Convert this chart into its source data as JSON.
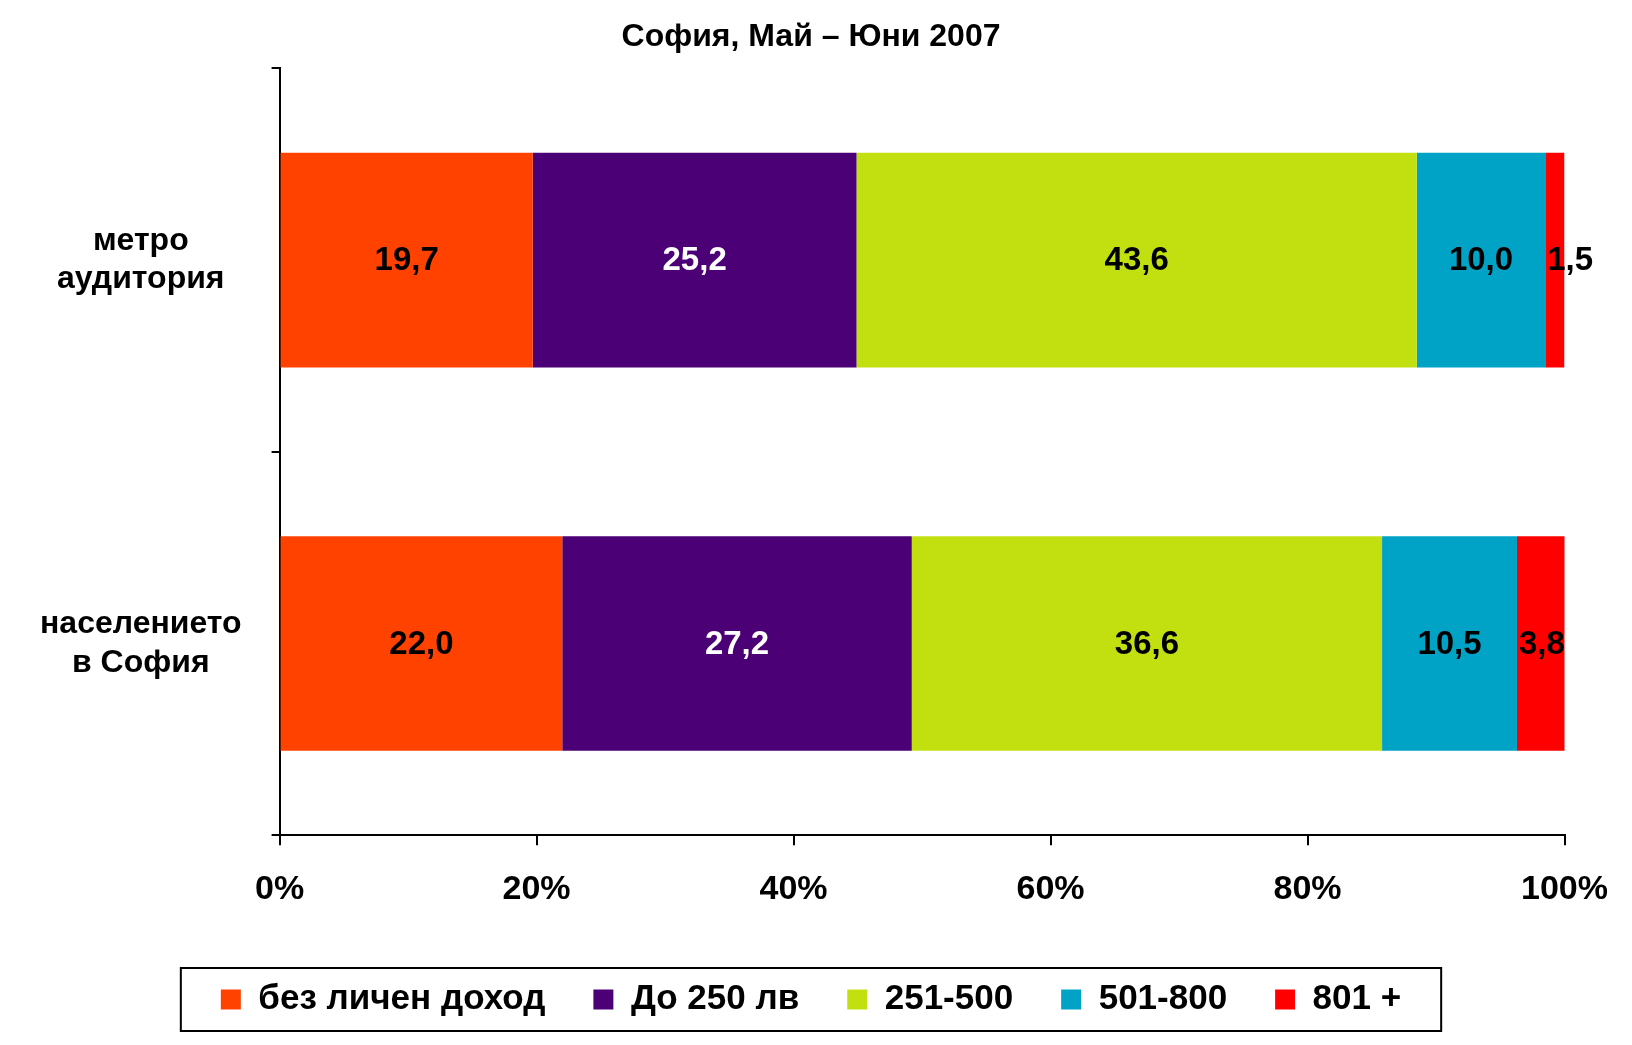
{
  "chart_data": {
    "type": "bar",
    "orientation": "horizontal",
    "stacked": true,
    "title": "София, Май – Юни 2007",
    "categories": [
      "метро аудитория",
      "населението в София"
    ],
    "series": [
      {
        "name": "без личен доход",
        "color": "#ff4200",
        "values": [
          19.7,
          22.0
        ],
        "value_labels": [
          "19,7",
          "22,0"
        ]
      },
      {
        "name": "До 250 лв",
        "color": "#4c0076",
        "values": [
          25.2,
          27.2
        ],
        "value_labels": [
          "25,2",
          "27,2"
        ]
      },
      {
        "name": "251-500",
        "color": "#c2e010",
        "values": [
          43.6,
          36.6
        ],
        "value_labels": [
          "43,6",
          "36,6"
        ]
      },
      {
        "name": "501-800",
        "color": "#00a2c6",
        "values": [
          10.0,
          10.5
        ],
        "value_labels": [
          "10,0",
          "10,5"
        ]
      },
      {
        "name": "801 +",
        "color": "#ff0000",
        "values": [
          1.5,
          3.8
        ],
        "value_labels": [
          "1,5",
          "3,8"
        ]
      }
    ],
    "xlim": [
      0,
      100
    ],
    "xticks": [
      {
        "value": 0,
        "label": "0%"
      },
      {
        "value": 20,
        "label": "20%"
      },
      {
        "value": 40,
        "label": "40%"
      },
      {
        "value": 60,
        "label": "60%"
      },
      {
        "value": 80,
        "label": "80%"
      },
      {
        "value": 100,
        "label": "100%"
      }
    ],
    "grid": false,
    "legend": "bottom"
  }
}
